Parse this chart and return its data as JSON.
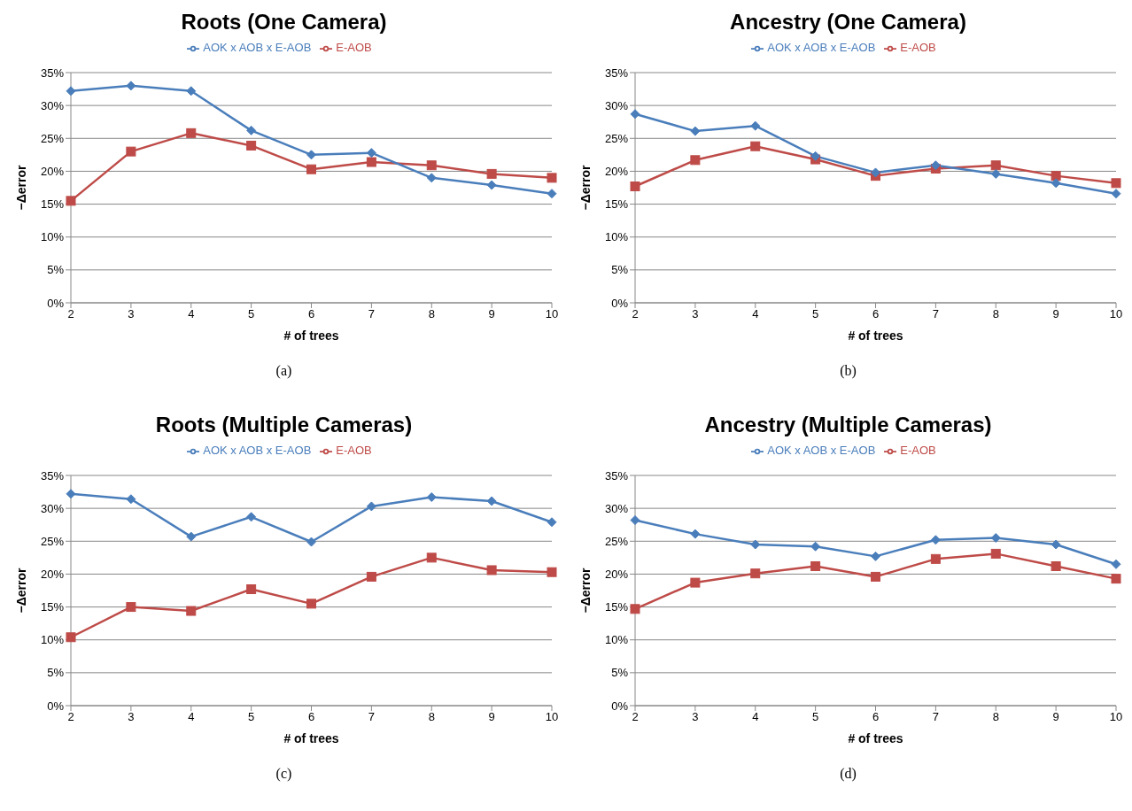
{
  "chart_data": [
    {
      "type": "line",
      "title": "Roots (One Camera)",
      "xlabel": "# of trees",
      "ylabel": "−Δerror",
      "annotations": [
        "(a)"
      ],
      "categories": [
        "2",
        "3",
        "4",
        "5",
        "6",
        "7",
        "8",
        "9",
        "10"
      ],
      "legend": "top",
      "grid": "y",
      "ylim": [
        0,
        35
      ],
      "yticks": [
        {
          "value": 0,
          "label": "0%"
        },
        {
          "value": 5,
          "label": "5%"
        },
        {
          "value": 10,
          "label": "10%"
        },
        {
          "value": 15,
          "label": "15%"
        },
        {
          "value": 20,
          "label": "20%"
        },
        {
          "value": 25,
          "label": "25%"
        },
        {
          "value": 30,
          "label": "30%"
        },
        {
          "value": 35,
          "label": "35%"
        }
      ],
      "series": [
        {
          "name": "AOK x AOB x E-AOB",
          "color": "#4a7ebb",
          "marker": "diamond",
          "values": [
            32.2,
            33.0,
            32.2,
            26.2,
            22.5,
            22.8,
            19.0,
            17.9,
            16.6
          ]
        },
        {
          "name": "E-AOB",
          "color": "#be4b48",
          "marker": "square",
          "values": [
            15.5,
            23.0,
            25.8,
            23.9,
            20.3,
            21.4,
            20.9,
            19.6,
            19.0
          ]
        }
      ]
    },
    {
      "type": "line",
      "title": "Ancestry (One Camera)",
      "xlabel": "# of trees",
      "ylabel": "−Δerror",
      "annotations": [
        "(b)"
      ],
      "categories": [
        "2",
        "3",
        "4",
        "5",
        "6",
        "7",
        "8",
        "9",
        "10"
      ],
      "legend": "top",
      "grid": "y",
      "ylim": [
        0,
        35
      ],
      "yticks": [
        {
          "value": 0,
          "label": "0%"
        },
        {
          "value": 5,
          "label": "5%"
        },
        {
          "value": 10,
          "label": "10%"
        },
        {
          "value": 15,
          "label": "15%"
        },
        {
          "value": 20,
          "label": "20%"
        },
        {
          "value": 25,
          "label": "25%"
        },
        {
          "value": 30,
          "label": "30%"
        },
        {
          "value": 35,
          "label": "35%"
        }
      ],
      "series": [
        {
          "name": "AOK x AOB x E-AOB",
          "color": "#4a7ebb",
          "marker": "diamond",
          "values": [
            28.7,
            26.1,
            26.9,
            22.3,
            19.8,
            20.9,
            19.6,
            18.2,
            16.6
          ]
        },
        {
          "name": "E-AOB",
          "color": "#be4b48",
          "marker": "square",
          "values": [
            17.7,
            21.7,
            23.8,
            21.8,
            19.3,
            20.4,
            20.9,
            19.3,
            18.2
          ]
        }
      ]
    },
    {
      "type": "line",
      "title": "Roots (Multiple Cameras)",
      "xlabel": "# of trees",
      "ylabel": "−Δerror",
      "annotations": [
        "(c)"
      ],
      "categories": [
        "2",
        "3",
        "4",
        "5",
        "6",
        "7",
        "8",
        "9",
        "10"
      ],
      "legend": "top",
      "grid": "y",
      "ylim": [
        0,
        35
      ],
      "yticks": [
        {
          "value": 0,
          "label": "0%"
        },
        {
          "value": 5,
          "label": "5%"
        },
        {
          "value": 10,
          "label": "10%"
        },
        {
          "value": 15,
          "label": "15%"
        },
        {
          "value": 20,
          "label": "20%"
        },
        {
          "value": 25,
          "label": "25%"
        },
        {
          "value": 30,
          "label": "30%"
        },
        {
          "value": 35,
          "label": "35%"
        }
      ],
      "series": [
        {
          "name": "AOK x AOB x E-AOB",
          "color": "#4a7ebb",
          "marker": "diamond",
          "values": [
            32.2,
            31.4,
            25.7,
            28.7,
            24.9,
            30.3,
            31.7,
            31.1,
            27.9
          ]
        },
        {
          "name": "E-AOB",
          "color": "#be4b48",
          "marker": "square",
          "values": [
            10.4,
            15.0,
            14.4,
            17.7,
            15.5,
            19.6,
            22.5,
            20.6,
            20.3
          ]
        }
      ]
    },
    {
      "type": "line",
      "title": "Ancestry (Multiple Cameras)",
      "xlabel": "# of trees",
      "ylabel": "−Δerror",
      "annotations": [
        "(d)"
      ],
      "categories": [
        "2",
        "3",
        "4",
        "5",
        "6",
        "7",
        "8",
        "9",
        "10"
      ],
      "legend": "top",
      "grid": "y",
      "ylim": [
        0,
        35
      ],
      "yticks": [
        {
          "value": 0,
          "label": "0%"
        },
        {
          "value": 5,
          "label": "5%"
        },
        {
          "value": 10,
          "label": "10%"
        },
        {
          "value": 15,
          "label": "15%"
        },
        {
          "value": 20,
          "label": "20%"
        },
        {
          "value": 25,
          "label": "25%"
        },
        {
          "value": 30,
          "label": "30%"
        },
        {
          "value": 35,
          "label": "35%"
        }
      ],
      "series": [
        {
          "name": "AOK x AOB x E-AOB",
          "color": "#4a7ebb",
          "marker": "diamond",
          "values": [
            28.2,
            26.1,
            24.5,
            24.2,
            22.7,
            25.2,
            25.5,
            24.5,
            21.5
          ]
        },
        {
          "name": "E-AOB",
          "color": "#be4b48",
          "marker": "square",
          "values": [
            14.7,
            18.7,
            20.1,
            21.2,
            19.6,
            22.3,
            23.1,
            21.2,
            19.3
          ]
        }
      ]
    }
  ]
}
